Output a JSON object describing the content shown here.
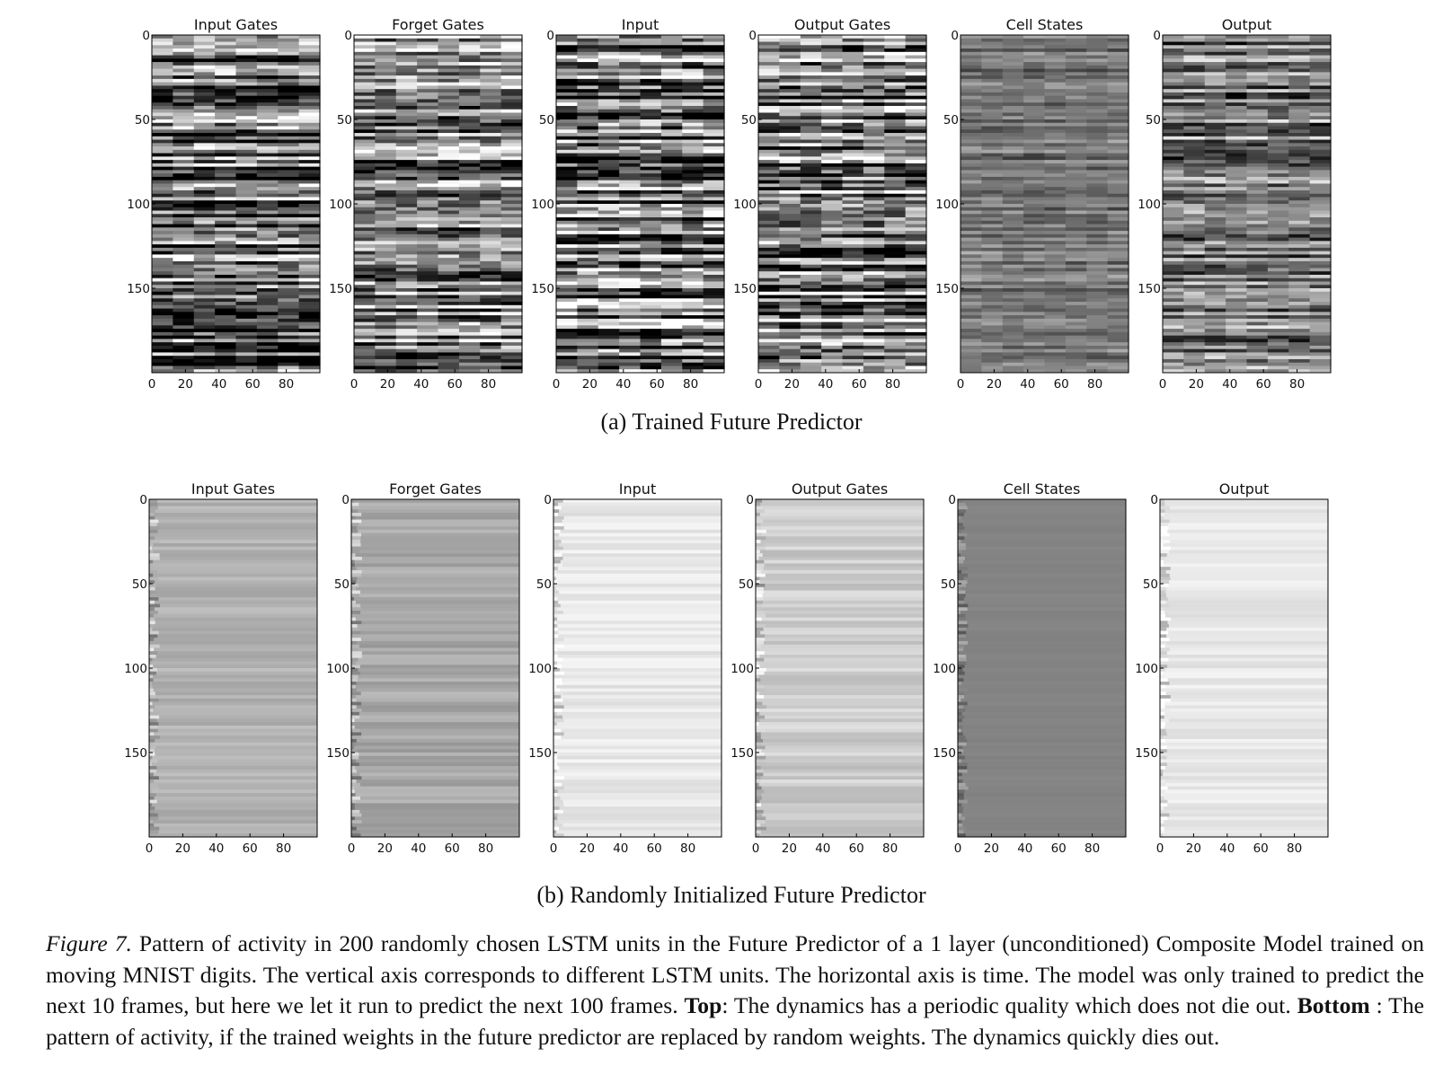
{
  "panel_titles": [
    "Input Gates",
    "Forget Gates",
    "Input",
    "Output Gates",
    "Cell States",
    "Output"
  ],
  "subfigures": [
    {
      "id": "a",
      "caption": "(a) Trained Future Predictor"
    },
    {
      "id": "b",
      "caption": "(b) Randomly Initialized Future Predictor"
    }
  ],
  "axes": {
    "x_ticks": [
      "0",
      "20",
      "40",
      "60",
      "80"
    ],
    "y_ticks": [
      "0",
      "50",
      "100",
      "150"
    ],
    "x_tick_values": [
      0,
      20,
      40,
      60,
      80
    ],
    "y_tick_values": [
      0,
      50,
      100,
      150
    ],
    "x_range": [
      0,
      100
    ],
    "y_range": [
      0,
      200
    ]
  },
  "colormap": "gray",
  "caption": {
    "label": "Figure 7.",
    "text1": " Pattern of activity in 200 randomly chosen LSTM units in the Future Predictor of a 1 layer (unconditioned) Composite Model trained on moving MNIST digits. The vertical axis corresponds to different LSTM units. The horizontal axis is time. The model was only trained to predict the next 10 frames, but here we let it run to predict the next 100 frames. ",
    "top_label": "Top",
    "text2": ": The dynamics has a periodic quality which does not die out. ",
    "bottom_label": "Bottom",
    "text3": " : The pattern of activity, if the trained weights in the future predictor are replaced by random weights. The dynamics quickly dies out."
  }
}
